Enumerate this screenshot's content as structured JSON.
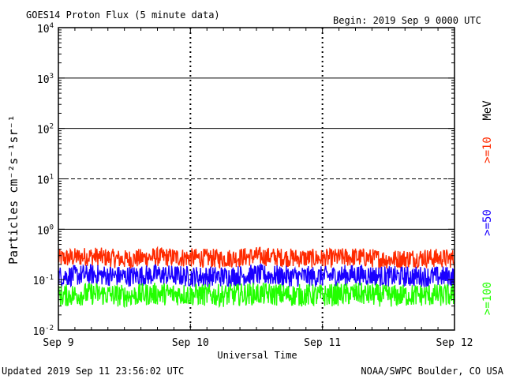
{
  "header": {
    "title": "GOES14 Proton Flux (5 minute data)",
    "begin": "Begin: 2019 Sep 9 0000 UTC"
  },
  "footer": {
    "updated": "Updated 2019 Sep 11 23:56:02 UTC",
    "source": "NOAA/SWPC Boulder, CO USA"
  },
  "chart_data": {
    "type": "line",
    "title": "GOES14 Proton Flux (5 minute data)",
    "xlabel": "Universal Time",
    "ylabel": "Particles cm⁻²s⁻¹sr⁻¹",
    "yscale": "log",
    "ylim": [
      0.01,
      10000
    ],
    "xlim": [
      "2019-09-09 00:00",
      "2019-09-12 00:00"
    ],
    "x_ticks": [
      "Sep 9",
      "Sep 10",
      "Sep 11",
      "Sep 12"
    ],
    "y_ticks": [
      {
        "base": "10",
        "exp": "4"
      },
      {
        "base": "10",
        "exp": "3"
      },
      {
        "base": "10",
        "exp": "2"
      },
      {
        "base": "10",
        "exp": "1"
      },
      {
        "base": "10",
        "exp": "0"
      },
      {
        "base": "10",
        "exp": "-1"
      },
      {
        "base": "10",
        "exp": "-2"
      }
    ],
    "right_labels": {
      "unit": "MeV",
      "p10": ">=10",
      "p50": ">=50",
      "p100": ">=100"
    },
    "colors": {
      "p10": "#ff2a00",
      "p50": "#1a00ff",
      "p100": "#22ff00"
    },
    "series": [
      {
        "name": ">=10",
        "color": "#ff2a00",
        "x": [
          "Sep 9 00:00",
          "Sep 9 06:00",
          "Sep 9 12:00",
          "Sep 9 18:00",
          "Sep 10 00:00",
          "Sep 10 06:00",
          "Sep 10 12:00",
          "Sep 10 18:00",
          "Sep 11 00:00",
          "Sep 11 06:00",
          "Sep 11 12:00",
          "Sep 11 18:00",
          "Sep 12 00:00"
        ],
        "values": [
          0.25,
          0.28,
          0.24,
          0.27,
          0.26,
          0.25,
          0.28,
          0.26,
          0.25,
          0.27,
          0.24,
          0.26,
          0.25
        ]
      },
      {
        "name": ">=50",
        "color": "#1a00ff",
        "x": [
          "Sep 9 00:00",
          "Sep 9 06:00",
          "Sep 9 12:00",
          "Sep 9 18:00",
          "Sep 10 00:00",
          "Sep 10 06:00",
          "Sep 10 12:00",
          "Sep 10 18:00",
          "Sep 11 00:00",
          "Sep 11 06:00",
          "Sep 11 12:00",
          "Sep 11 18:00",
          "Sep 12 00:00"
        ],
        "values": [
          0.11,
          0.12,
          0.11,
          0.12,
          0.11,
          0.11,
          0.12,
          0.11,
          0.11,
          0.12,
          0.11,
          0.11,
          0.11
        ]
      },
      {
        "name": ">=100",
        "color": "#22ff00",
        "x": [
          "Sep 9 00:00",
          "Sep 9 06:00",
          "Sep 9 12:00",
          "Sep 9 18:00",
          "Sep 10 00:00",
          "Sep 10 06:00",
          "Sep 10 12:00",
          "Sep 10 18:00",
          "Sep 11 00:00",
          "Sep 11 06:00",
          "Sep 11 12:00",
          "Sep 11 18:00",
          "Sep 12 00:00"
        ],
        "values": [
          0.045,
          0.05,
          0.045,
          0.05,
          0.048,
          0.046,
          0.05,
          0.047,
          0.046,
          0.05,
          0.045,
          0.047,
          0.046
        ]
      }
    ]
  }
}
